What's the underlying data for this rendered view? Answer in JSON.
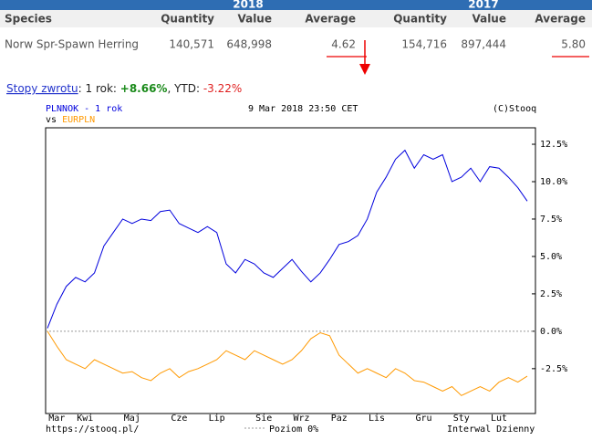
{
  "table": {
    "group_headers": [
      "2018",
      "2017"
    ],
    "columns": [
      "Species",
      "Quantity",
      "Value",
      "Average",
      "Quantity",
      "Value",
      "Average"
    ],
    "rows": [
      [
        "Norw Spr-Spawn Herring",
        "140,571",
        "648,998",
        "4.62",
        "154,716",
        "897,444",
        "5.80"
      ]
    ]
  },
  "returns": {
    "link": "Stopy zwrotu",
    "one_year_text": ": 1 rok: ",
    "one_year": "+8.66%",
    "ytd_text": ", YTD: ",
    "ytd": "-3.22%"
  },
  "chart_data": {
    "type": "line",
    "title_suffix": " - 1 rok",
    "subtitle": "9 Mar 2018 23:50 CET",
    "credit": "(C)Stooq",
    "vs_label": "vs ",
    "source": "https://stooq.pl/",
    "zero_line_label": "Poziom 0%",
    "interval": "Interwal Dzienny",
    "categories": [
      null,
      "Mar",
      null,
      null,
      "Kwi",
      null,
      null,
      null,
      null,
      "Maj",
      null,
      null,
      null,
      null,
      "Cze",
      null,
      null,
      null,
      "Lip",
      null,
      null,
      null,
      null,
      "Sie",
      null,
      null,
      null,
      "Wrz",
      null,
      null,
      null,
      "Paz",
      null,
      null,
      null,
      "Lis",
      null,
      null,
      null,
      null,
      "Gru",
      null,
      null,
      null,
      "Sty",
      null,
      null,
      null,
      "Lut",
      null,
      null,
      null
    ],
    "series": [
      {
        "name": "PLNNOK",
        "color": "#0000dd",
        "values": [
          0.2,
          1.8,
          3.0,
          3.6,
          3.3,
          3.9,
          5.7,
          6.6,
          7.5,
          7.2,
          7.5,
          7.4,
          8.0,
          8.1,
          7.2,
          6.9,
          6.6,
          7.0,
          6.6,
          4.5,
          3.9,
          4.8,
          4.5,
          3.9,
          3.6,
          4.2,
          4.8,
          4.0,
          3.3,
          3.9,
          4.8,
          5.8,
          6.0,
          6.4,
          7.5,
          9.3,
          10.3,
          11.5,
          12.1,
          10.9,
          11.8,
          11.5,
          11.8,
          10.0,
          10.3,
          10.9,
          10.0,
          11.0,
          10.9,
          10.3,
          9.6,
          8.7
        ]
      },
      {
        "name": "EURPLN",
        "color": "#ff9900",
        "values": [
          0.0,
          -1.0,
          -1.9,
          -2.2,
          -2.5,
          -1.9,
          -2.2,
          -2.5,
          -2.8,
          -2.7,
          -3.1,
          -3.3,
          -2.8,
          -2.5,
          -3.1,
          -2.7,
          -2.5,
          -2.2,
          -1.9,
          -1.3,
          -1.6,
          -1.9,
          -1.3,
          -1.6,
          -1.9,
          -2.2,
          -1.9,
          -1.3,
          -0.5,
          -0.1,
          -0.3,
          -1.6,
          -2.2,
          -2.8,
          -2.5,
          -2.8,
          -3.1,
          -2.5,
          -2.8,
          -3.3,
          -3.4,
          -3.7,
          -4.0,
          -3.7,
          -4.3,
          -4.0,
          -3.7,
          -4.0,
          -3.4,
          -3.1,
          -3.4,
          -3.0
        ]
      }
    ],
    "ylim": [
      -5.5,
      13.6
    ],
    "yticks": [
      {
        "value": 12.5,
        "label": "12.5%"
      },
      {
        "value": 10,
        "label": "10.0%"
      },
      {
        "value": 7.5,
        "label": "7.5%"
      },
      {
        "value": 5,
        "label": "5.0%"
      },
      {
        "value": 2.5,
        "label": "2.5%"
      },
      {
        "value": 0,
        "label": "0.0%"
      },
      {
        "value": -2.5,
        "label": "-2.5%"
      }
    ]
  }
}
